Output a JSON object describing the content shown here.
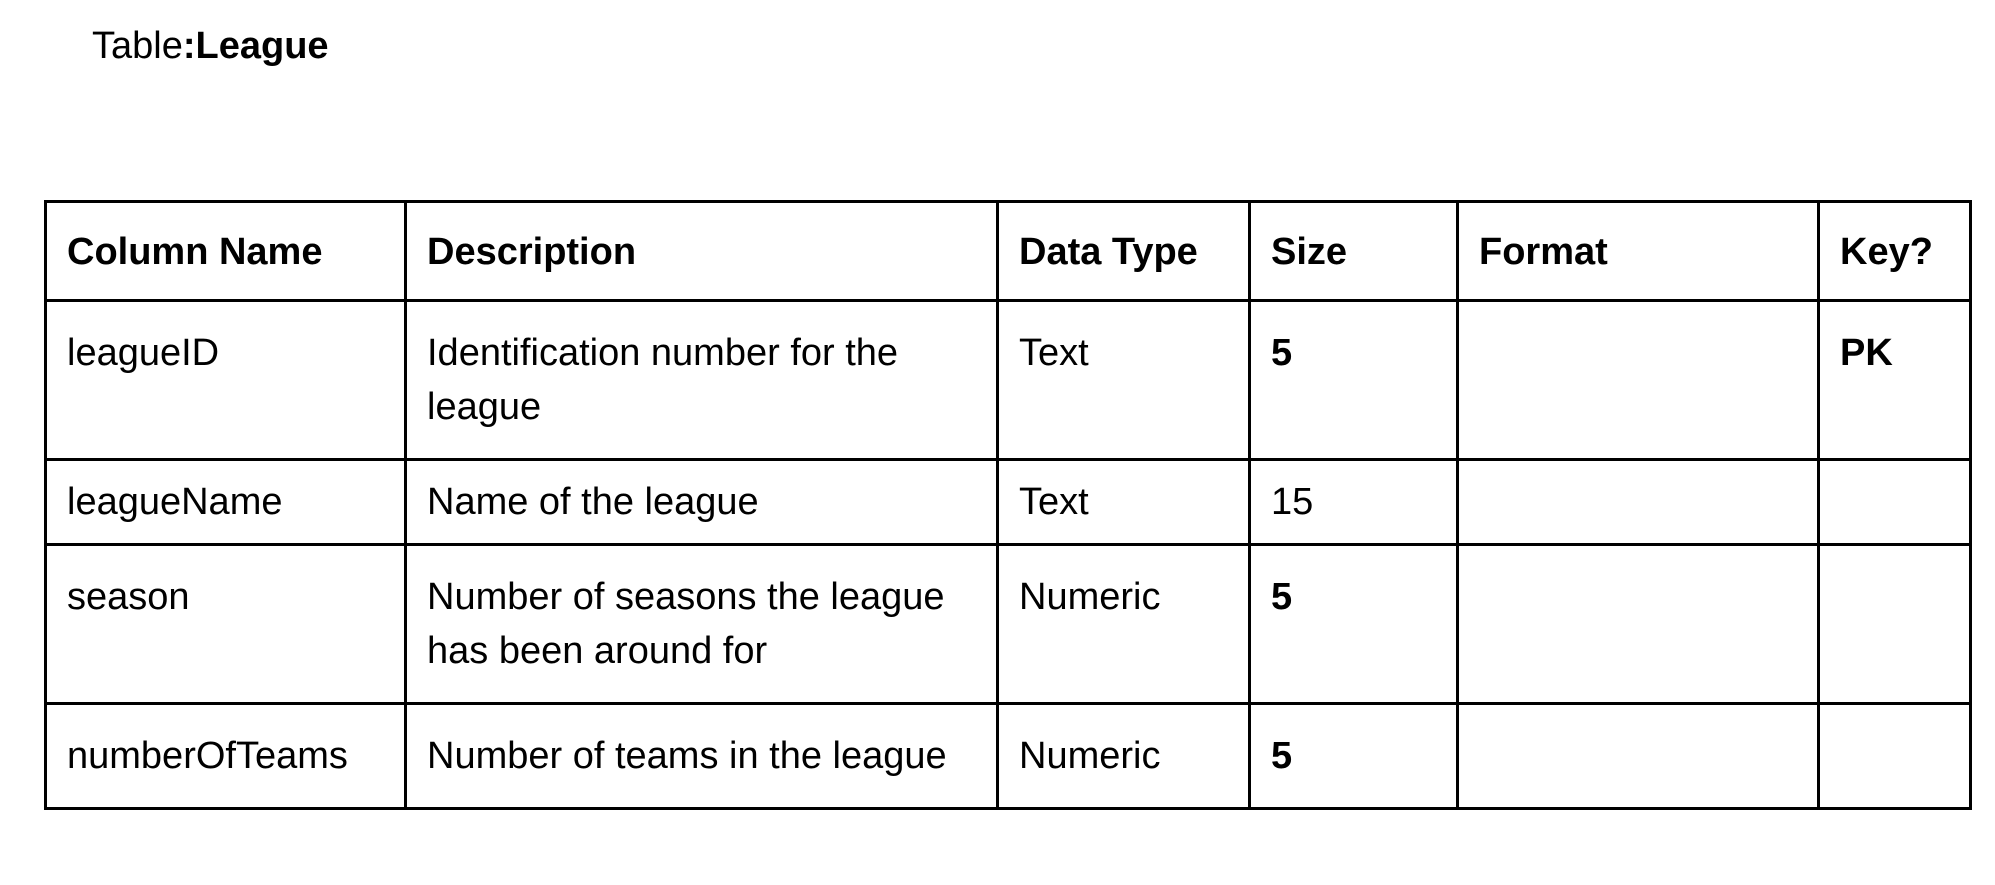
{
  "caption": {
    "prefix": "Table",
    "separator": ":",
    "name": "League"
  },
  "table": {
    "headers": [
      "Column Name",
      "Description",
      "Data Type",
      "Size",
      "Format",
      "Key?"
    ],
    "rows": [
      {
        "column_name": "leagueID",
        "description": "Identification number for the league",
        "data_type": "Text",
        "size": "5",
        "format": "",
        "key": "PK"
      },
      {
        "column_name": "leagueName",
        "description": "Name of the league",
        "data_type": "Text",
        "size": "15",
        "format": "",
        "key": ""
      },
      {
        "column_name": "season",
        "description": "Number of seasons the league has been around for",
        "data_type": "Numeric",
        "size": "5",
        "format": "",
        "key": ""
      },
      {
        "column_name": "numberOfTeams",
        "description": "Number of teams in the league",
        "data_type": "Numeric",
        "size": "5",
        "format": "",
        "key": ""
      }
    ]
  }
}
